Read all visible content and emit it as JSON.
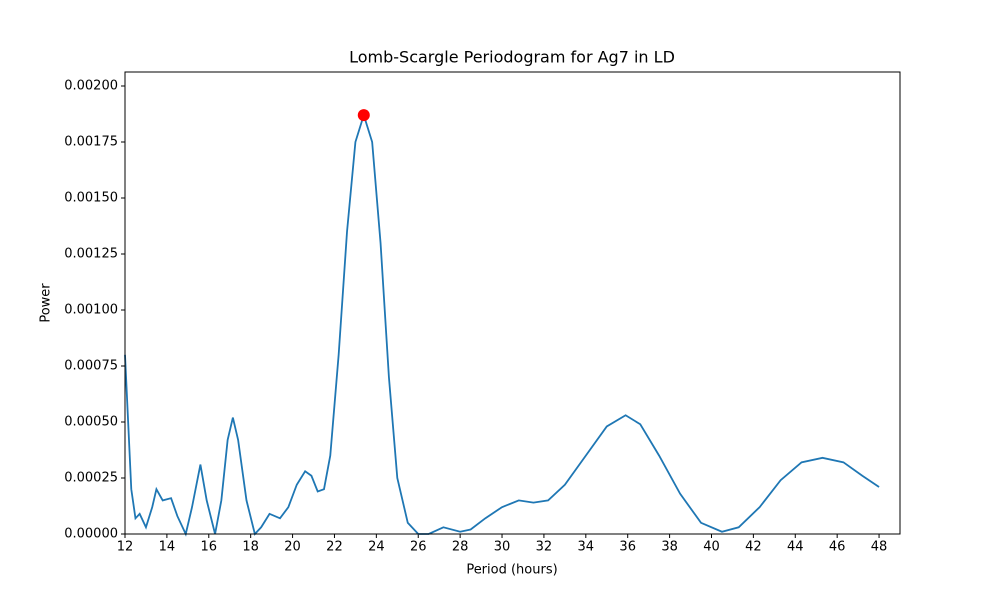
{
  "chart_data": {
    "type": "line",
    "title": "Lomb-Scargle Periodogram for Ag7 in LD",
    "x_label": "Period (hours)",
    "y_label": "Power",
    "x": [
      12,
      12.3,
      12.5,
      12.7,
      13.0,
      13.3,
      13.5,
      13.8,
      14.2,
      14.5,
      14.9,
      15.2,
      15.6,
      15.9,
      16.3,
      16.6,
      16.9,
      17.15,
      17.4,
      17.8,
      18.2,
      18.5,
      18.9,
      19.4,
      19.8,
      20.2,
      20.6,
      20.9,
      21.2,
      21.5,
      21.8,
      22.2,
      22.6,
      23.0,
      23.4,
      23.8,
      24.2,
      24.6,
      25.0,
      25.5,
      26.0,
      26.5,
      27.2,
      28.0,
      28.5,
      29.2,
      30.0,
      30.8,
      31.5,
      32.2,
      33.0,
      34.0,
      35.0,
      35.9,
      36.6,
      37.5,
      38.5,
      39.5,
      40.5,
      41.3,
      42.3,
      43.3,
      44.3,
      45.3,
      46.3,
      47.2,
      48
    ],
    "series": [
      {
        "color": "#1f77b4",
        "values": [
          0.0008,
          0.0002,
          7e-05,
          9e-05,
          3e-05,
          0.00012,
          0.0002,
          0.00015,
          0.00016,
          8e-05,
          0.0,
          0.00012,
          0.00031,
          0.00015,
          0.0,
          0.00015,
          0.00042,
          0.00052,
          0.00042,
          0.00015,
          0.0,
          3e-05,
          9e-05,
          7e-05,
          0.00012,
          0.00022,
          0.00028,
          0.00026,
          0.00019,
          0.0002,
          0.00035,
          0.0008,
          0.00135,
          0.00175,
          0.00187,
          0.00175,
          0.0013,
          0.0007,
          0.00025,
          5e-05,
          0.0,
          0.0,
          3e-05,
          1e-05,
          2e-05,
          7e-05,
          0.00012,
          0.00015,
          0.00014,
          0.00015,
          0.00022,
          0.00035,
          0.00048,
          0.00053,
          0.00049,
          0.00035,
          0.00018,
          5e-05,
          1e-05,
          3e-05,
          0.00012,
          0.00024,
          0.00032,
          0.00034,
          0.00032,
          0.00026,
          0.00021
        ]
      }
    ],
    "peak": {
      "x": 23.4,
      "y": 0.00187,
      "color": "#ff0000"
    },
    "xlim": [
      12,
      49
    ],
    "ylim": [
      0,
      0.0020625
    ],
    "xticks": [
      12,
      14,
      16,
      18,
      20,
      22,
      24,
      26,
      28,
      30,
      32,
      34,
      36,
      38,
      40,
      42,
      44,
      46,
      48
    ],
    "yticks": [
      {
        "value": 0,
        "label": "0.00000"
      },
      {
        "value": 0.00025,
        "label": "0.00025"
      },
      {
        "value": 0.0005,
        "label": "0.00050"
      },
      {
        "value": 0.00075,
        "label": "0.00075"
      },
      {
        "value": 0.001,
        "label": "0.00100"
      },
      {
        "value": 0.00125,
        "label": "0.00125"
      },
      {
        "value": 0.0015,
        "label": "0.00150"
      },
      {
        "value": 0.00175,
        "label": "0.00175"
      },
      {
        "value": 0.002,
        "label": "0.00200"
      }
    ]
  }
}
